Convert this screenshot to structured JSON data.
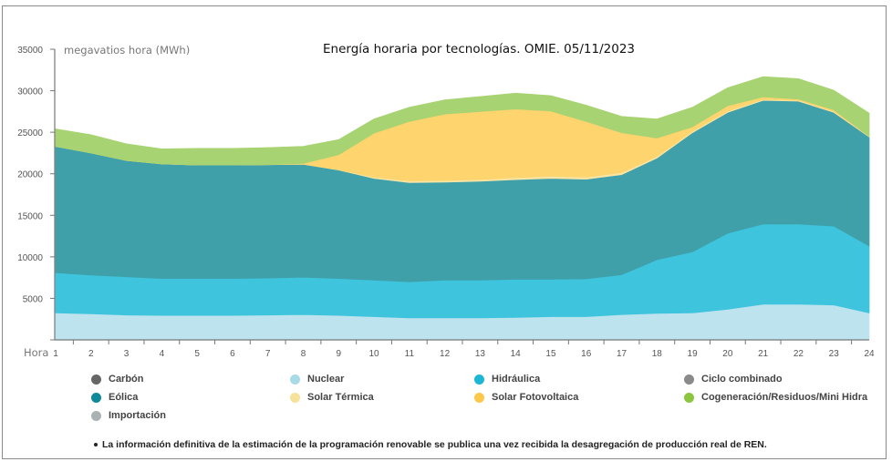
{
  "chart_data": {
    "type": "area",
    "stacked": true,
    "title": "Energía horaria por tecnologías. OMIE. 05/11/2023",
    "ylabel": "megavatios hora (MWh)",
    "xlabel": "Hora",
    "ylim": [
      0,
      35000
    ],
    "yticks": [
      5000,
      10000,
      15000,
      20000,
      25000,
      30000,
      35000
    ],
    "x": [
      1,
      2,
      3,
      4,
      5,
      6,
      7,
      8,
      9,
      10,
      11,
      12,
      13,
      14,
      15,
      16,
      17,
      18,
      19,
      20,
      21,
      22,
      23,
      24
    ],
    "grid": false,
    "legend_position": "bottom",
    "series": [
      {
        "name": "Nuclear",
        "color": "#bde3ee",
        "values": [
          3250,
          3150,
          3000,
          2950,
          2950,
          2950,
          3000,
          3050,
          2950,
          2800,
          2650,
          2650,
          2650,
          2700,
          2800,
          2800,
          3050,
          3200,
          3250,
          3700,
          4300,
          4300,
          4200,
          3250
        ]
      },
      {
        "name": "Hidráulica",
        "color": "#3fc4dd",
        "values": [
          4850,
          4650,
          4600,
          4450,
          4450,
          4450,
          4450,
          4500,
          4450,
          4400,
          4350,
          4550,
          4550,
          4600,
          4500,
          4550,
          4800,
          6450,
          7350,
          9150,
          9650,
          9650,
          9500,
          8050
        ]
      },
      {
        "name": "Eólica",
        "color": "#40a0aa",
        "values": [
          15200,
          14700,
          14000,
          13800,
          13650,
          13650,
          13650,
          13600,
          13050,
          12250,
          11950,
          11800,
          11900,
          12000,
          12150,
          12000,
          12050,
          12250,
          14350,
          14550,
          14900,
          14800,
          13700,
          13150
        ]
      },
      {
        "name": "Solar Térmica",
        "color": "#f9e4a3",
        "values": [
          0,
          0,
          0,
          0,
          0,
          0,
          0,
          0,
          50,
          150,
          200,
          200,
          200,
          250,
          250,
          250,
          250,
          200,
          150,
          150,
          100,
          100,
          100,
          50
        ]
      },
      {
        "name": "Solar Fotovoltaica",
        "color": "#fdd46e",
        "values": [
          0,
          0,
          0,
          0,
          0,
          0,
          0,
          100,
          1800,
          5300,
          7150,
          8000,
          8200,
          8250,
          7850,
          6700,
          4800,
          2200,
          550,
          650,
          300,
          150,
          200,
          0
        ]
      },
      {
        "name": "Cogeneración/Residuos/Mini Hidra",
        "color": "#a8d372",
        "values": [
          2100,
          2200,
          2000,
          1800,
          2000,
          2000,
          2050,
          2050,
          1800,
          1700,
          1700,
          1700,
          1800,
          1900,
          1850,
          1950,
          1950,
          2300,
          2350,
          2150,
          2450,
          2450,
          2350,
          2800
        ]
      }
    ],
    "legend": [
      {
        "name": "Carbón",
        "color": "#666666"
      },
      {
        "name": "Nuclear",
        "color": "#a8dbe8"
      },
      {
        "name": "Hidráulica",
        "color": "#1db6d6"
      },
      {
        "name": "Ciclo combinado",
        "color": "#8a8a8a"
      },
      {
        "name": "Eólica",
        "color": "#0f8a98"
      },
      {
        "name": "Solar Térmica",
        "color": "#f8e19a"
      },
      {
        "name": "Solar Fotovoltaica",
        "color": "#fcc84a"
      },
      {
        "name": "Cogeneración/Residuos/Mini Hidra",
        "color": "#8cc63f"
      },
      {
        "name": "Importación",
        "color": "#aab2b4"
      }
    ]
  },
  "note": "La información definitiva de la estimación de la programación renovable se publica una vez recibida la desagregación de producción real de REN."
}
